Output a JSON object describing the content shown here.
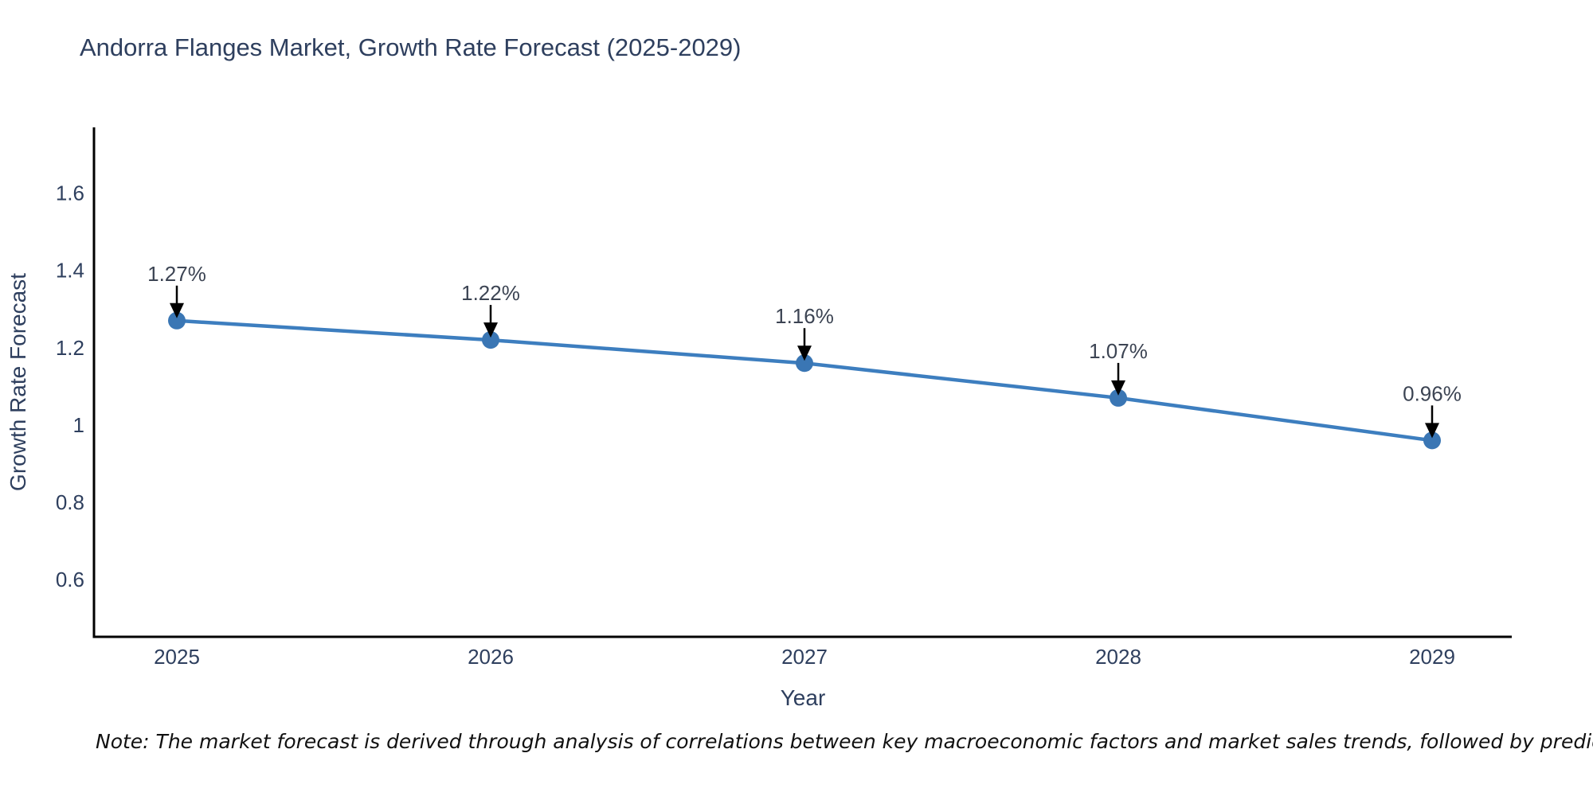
{
  "title": "Andorra Flanges Market, Growth Rate Forecast (2025-2029)",
  "note": "Note: The market forecast is derived through analysis of correlations between key macroeconomic factors and market sales trends, followed by predictive modeling to project future sales",
  "colors": {
    "line": "#3d7ebf",
    "marker": "#3a76b4",
    "axis": "#000000",
    "title_text": "#2e3f5e",
    "tick_text": "#2e3f5e",
    "annotation_text": "#3c4453",
    "arrow": "#000000",
    "background": "#ffffff"
  },
  "axes": {
    "x_title": "Year",
    "y_title": "Growth Rate Forecast",
    "x_tick_labels": [
      "2025",
      "2026",
      "2027",
      "2028",
      "2029"
    ],
    "y_tick_labels": [
      "0.6",
      "0.8",
      "1",
      "1.2",
      "1.4",
      "1.6"
    ],
    "y_tick_values": [
      0.6,
      0.8,
      1,
      1.2,
      1.4,
      1.6
    ]
  },
  "chart_data": {
    "type": "line",
    "title": "Andorra Flanges Market, Growth Rate Forecast (2025-2029)",
    "xlabel": "Year",
    "ylabel": "Growth Rate Forecast",
    "x": [
      2025,
      2026,
      2027,
      2028,
      2029
    ],
    "y": [
      1.27,
      1.22,
      1.16,
      1.07,
      0.96
    ],
    "point_labels": [
      "1.27%",
      "1.22%",
      "1.16%",
      "1.07%",
      "0.96%"
    ],
    "units": "percent",
    "ylim": [
      0.45,
      1.77
    ],
    "yticks": [
      0.6,
      0.8,
      1,
      1.2,
      1.4,
      1.6
    ],
    "grid": false,
    "legend": null,
    "marker_style": "circle",
    "annotations_have_arrows": true
  }
}
